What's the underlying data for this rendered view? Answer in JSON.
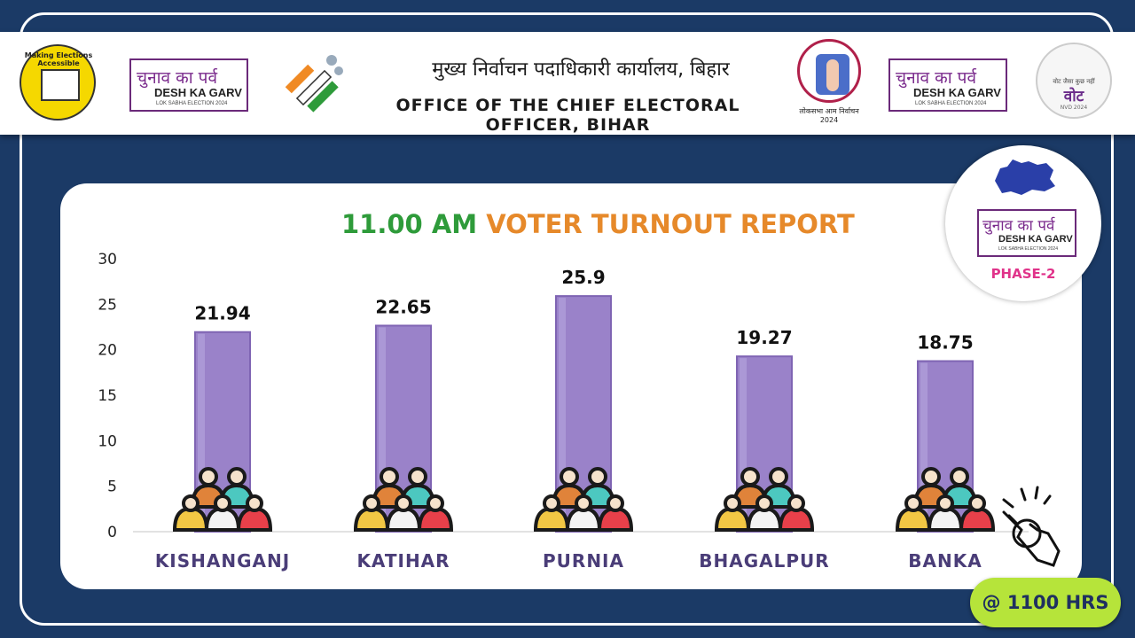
{
  "header": {
    "hindi_title": "मुख्य निर्वाचन पदाधिकारी कार्यालय, बिहार",
    "english_title": "OFFICE OF THE CHIEF ELECTORAL OFFICER, BIHAR",
    "campaign_hindi": "चुनाव का पर्व",
    "campaign_english": "DESH KA GARV",
    "campaign_sub": "LOK SABHA ELECTION 2024",
    "accessibility_logo_text": "Making Elections Accessible",
    "sveep_caption": "लोकसभा आम निर्वाचन 2024",
    "vote_logo_text": "वोट",
    "vote_logo_sub": "वोट जैसा कुछ नहीं",
    "vote_logo_foot": "NVD 2024"
  },
  "badge": {
    "campaign_hindi": "चुनाव का पर्व",
    "campaign_english": "DESH KA GARV",
    "campaign_sub": "LOK SABHA ELECTION 2024",
    "phase": "PHASE-2"
  },
  "title": {
    "time": "11.00 AM",
    "rest": "VOTER TURNOUT REPORT"
  },
  "time_pill": "@ 1100 HRS",
  "colors": {
    "bar": "#9a82c9",
    "bar_edge": "#7f64b3",
    "label": "#4a3d78",
    "title_time": "#2e9b3a",
    "title_rest": "#e6892a",
    "background": "#1b3a66"
  },
  "chart_data": {
    "type": "bar",
    "title": "11.00 AM VOTER TURNOUT REPORT",
    "categories": [
      "KISHANGANJ",
      "KATIHAR",
      "PURNIA",
      "BHAGALPUR",
      "BANKA"
    ],
    "values": [
      21.94,
      22.65,
      25.9,
      19.27,
      18.75
    ],
    "value_labels": [
      "21.94",
      "22.65",
      "25.9",
      "19.27",
      "18.75"
    ],
    "ylim": [
      0,
      30
    ],
    "yticks": [
      "0",
      "5",
      "10",
      "15",
      "20",
      "25",
      "30"
    ],
    "xlabel": "",
    "ylabel": "",
    "grid": false,
    "legend": "none"
  }
}
